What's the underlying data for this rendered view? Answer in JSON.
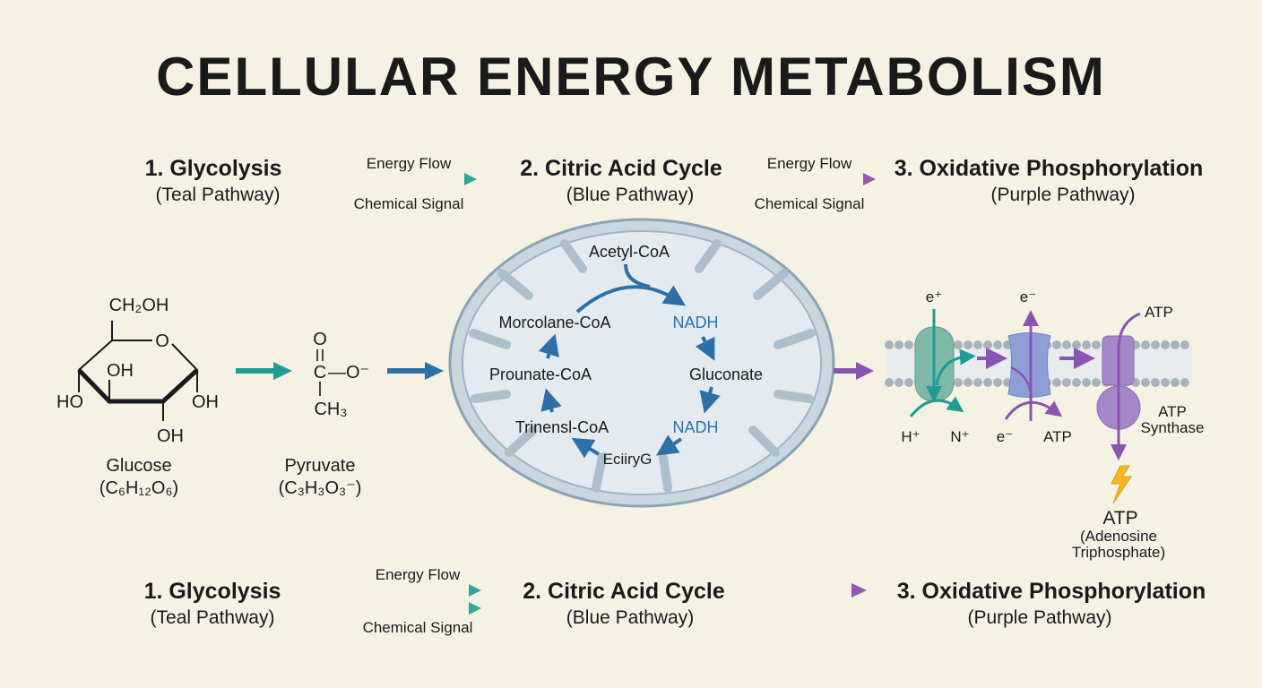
{
  "title": "CELLULAR ENERGY METABOLISM",
  "colors": {
    "teal": "#1f9c93",
    "blue": "#2f6fa8",
    "purple": "#8a55b0",
    "background": "#f6f2e3",
    "bolt": "#f2b822"
  },
  "top_row": {
    "stage1": {
      "title": "1. Glycolysis",
      "subtitle": "(Teal Pathway)"
    },
    "arrow1": {
      "top_label": "Energy Flow",
      "bottom_label": "Chemical Signal"
    },
    "stage2": {
      "title": "2. Citric Acid Cycle",
      "subtitle": "(Blue Pathway)"
    },
    "arrow2": {
      "top_label": "Energy Flow",
      "bottom_label": "Chemical Signal"
    },
    "stage3": {
      "title": "3. Oxidative Phosphorylation",
      "subtitle": "(Purple Pathway)"
    }
  },
  "glucose": {
    "ch2oh": "CH₂OH",
    "o": "O",
    "oh1": "OH",
    "ho": "HO",
    "oh2": "OH",
    "oh3": "OH",
    "name": "Glucose",
    "formula": "(C₆H₁₂O₆)"
  },
  "pyruvate": {
    "o": "O",
    "c": "C",
    "o_minus": "—O⁻",
    "ch3": "CH₃",
    "name": "Pyruvate",
    "formula": "(C₃H₃O₃⁻)"
  },
  "cycle": {
    "acetyl": "Acetyl-CoA",
    "nadh1": "NADH",
    "gluconate": "Gluconate",
    "nadh2": "NADH",
    "eciiryg": "EciiryG",
    "trinensyl": "Trinensl-CoA",
    "prounate": "Prounate-CoA",
    "morcolane": "Morcolane-CoA"
  },
  "etc": {
    "e_plus": "e⁺",
    "e_minus_top": "e⁻",
    "atp_top": "ATP",
    "h_plus": "H⁺",
    "n_plus": "N⁺",
    "e_minus_bottom": "e⁻",
    "atp_mid": "ATP",
    "synthase": [
      "ATP",
      "Synthase"
    ],
    "atp_product": [
      "ATP",
      "(Adenosine",
      "Triphosphate)"
    ]
  },
  "bottom_row": {
    "stage1": {
      "title": "1. Glycolysis",
      "subtitle": "(Teal Pathway)"
    },
    "arrow1": {
      "top_label": "Energy Flow",
      "bottom_label": "Chemical Signal"
    },
    "stage2": {
      "title": "2. Citric Acid Cycle",
      "subtitle": "(Blue Pathway)"
    },
    "stage3": {
      "title": "3. Oxidative Phosphorylation",
      "subtitle": "(Purple Pathway)"
    }
  }
}
